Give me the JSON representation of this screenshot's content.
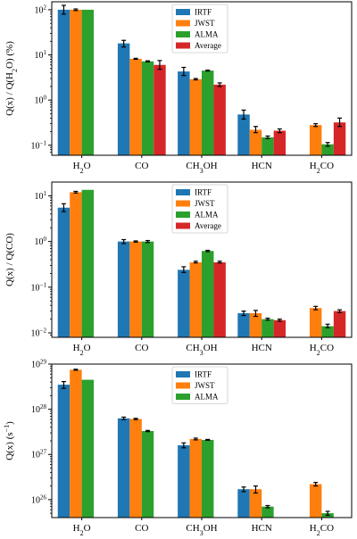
{
  "series_colors": {
    "IRTF": "#1f77b4",
    "JWST": "#ff7f0e",
    "ALMA": "#2ca02c",
    "Average": "#d62728"
  },
  "chart_data": [
    {
      "type": "bar",
      "yscale": "log",
      "ylim": [
        0.06,
        150
      ],
      "yticks": [
        0.1,
        1,
        10,
        100
      ],
      "ytick_labels": [
        {
          "base": "10",
          "exp": "−1"
        },
        {
          "base": "10",
          "exp": "0"
        },
        {
          "base": "10",
          "exp": "1"
        },
        {
          "base": "10",
          "exp": "2"
        }
      ],
      "ylabel_parts": [
        {
          "t": "Q(x) / Q(H"
        },
        {
          "t": "2",
          "sub": true
        },
        {
          "t": "O) (%)"
        }
      ],
      "categories": [
        [
          {
            "t": "H"
          },
          {
            "t": "2",
            "sub": true
          },
          {
            "t": "O"
          }
        ],
        [
          {
            "t": "CO"
          }
        ],
        [
          {
            "t": "CH"
          },
          {
            "t": "3",
            "sub": true
          },
          {
            "t": "OH"
          }
        ],
        [
          {
            "t": "HCN"
          }
        ],
        [
          {
            "t": "H"
          },
          {
            "t": "2",
            "sub": true
          },
          {
            "t": "CO"
          }
        ]
      ],
      "legend": [
        "IRTF",
        "JWST",
        "ALMA",
        "Average"
      ],
      "legend_position": "top-center",
      "series": [
        {
          "name": "IRTF",
          "values": [
            100,
            18,
            4.3,
            0.48,
            null
          ],
          "err": [
            [
              80,
              125
            ],
            [
              15,
              21
            ],
            [
              3.5,
              5.3
            ],
            [
              0.38,
              0.6
            ],
            null
          ]
        },
        {
          "name": "JWST",
          "values": [
            100,
            8.2,
            2.9,
            0.22,
            0.28
          ],
          "err": [
            [
              96,
              104
            ],
            [
              8.0,
              8.4
            ],
            [
              2.8,
              3.0
            ],
            [
              0.19,
              0.26
            ],
            [
              0.26,
              0.3
            ]
          ]
        },
        {
          "name": "ALMA",
          "values": [
            100,
            7.2,
            4.5,
            0.15,
            0.105
          ],
          "err": [
            null,
            [
              7.0,
              7.4
            ],
            [
              4.4,
              4.6
            ],
            [
              0.14,
              0.16
            ],
            [
              0.095,
              0.115
            ]
          ]
        },
        {
          "name": "Average",
          "values": [
            null,
            6.0,
            2.2,
            0.21,
            0.32
          ],
          "err": [
            null,
            [
              4.8,
              7.5
            ],
            [
              2.0,
              2.4
            ],
            [
              0.19,
              0.23
            ],
            [
              0.26,
              0.4
            ]
          ]
        }
      ]
    },
    {
      "type": "bar",
      "yscale": "log",
      "ylim": [
        0.008,
        20
      ],
      "yticks": [
        0.01,
        0.1,
        1,
        10
      ],
      "ytick_labels": [
        {
          "base": "10",
          "exp": "−2"
        },
        {
          "base": "10",
          "exp": "−1"
        },
        {
          "base": "10",
          "exp": "0"
        },
        {
          "base": "10",
          "exp": "1"
        }
      ],
      "ylabel_parts": [
        {
          "t": "Q(x) / Q(CO)"
        }
      ],
      "categories": [
        [
          {
            "t": "H"
          },
          {
            "t": "2",
            "sub": true
          },
          {
            "t": "O"
          }
        ],
        [
          {
            "t": "CO"
          }
        ],
        [
          {
            "t": "CH"
          },
          {
            "t": "3",
            "sub": true
          },
          {
            "t": "OH"
          }
        ],
        [
          {
            "t": "HCN"
          }
        ],
        [
          {
            "t": "H"
          },
          {
            "t": "2",
            "sub": true
          },
          {
            "t": "CO"
          }
        ]
      ],
      "legend": [
        "IRTF",
        "JWST",
        "ALMA",
        "Average"
      ],
      "legend_position": "top-center",
      "series": [
        {
          "name": "IRTF",
          "values": [
            5.5,
            1.0,
            0.24,
            0.027,
            null
          ],
          "err": [
            [
              4.5,
              6.7
            ],
            [
              0.9,
              1.1
            ],
            [
              0.21,
              0.28
            ],
            [
              0.024,
              0.03
            ],
            null
          ]
        },
        {
          "name": "JWST",
          "values": [
            12,
            1.0,
            0.35,
            0.027,
            0.035
          ],
          "err": [
            [
              11.5,
              12.5
            ],
            [
              0.97,
              1.03
            ],
            [
              0.34,
              0.37
            ],
            [
              0.023,
              0.031
            ],
            [
              0.032,
              0.038
            ]
          ]
        },
        {
          "name": "ALMA",
          "values": [
            13.5,
            1.0,
            0.62,
            0.02,
            0.014
          ],
          "err": [
            null,
            [
              0.95,
              1.05
            ],
            [
              0.6,
              0.64
            ],
            [
              0.019,
              0.021
            ],
            [
              0.013,
              0.0155
            ]
          ]
        },
        {
          "name": "Average",
          "values": [
            null,
            null,
            0.35,
            0.019,
            0.03
          ],
          "err": [
            null,
            null,
            [
              0.34,
              0.37
            ],
            [
              0.018,
              0.02
            ],
            [
              0.028,
              0.032
            ]
          ]
        }
      ]
    },
    {
      "type": "bar",
      "yscale": "log",
      "ylim": [
        4e+25,
        1e+29
      ],
      "yticks": [
        1e+26,
        1e+27,
        1e+28,
        1e+29
      ],
      "ytick_labels": [
        {
          "base": "10",
          "exp": "26"
        },
        {
          "base": "10",
          "exp": "27"
        },
        {
          "base": "10",
          "exp": "28"
        },
        {
          "base": "10",
          "exp": "29"
        }
      ],
      "ylabel_parts": [
        {
          "t": "Q(x) (s"
        },
        {
          "t": "−1",
          "sup": true
        },
        {
          "t": ")"
        }
      ],
      "categories": [
        [
          {
            "t": "H"
          },
          {
            "t": "2",
            "sub": true
          },
          {
            "t": "O"
          }
        ],
        [
          {
            "t": "CO"
          }
        ],
        [
          {
            "t": "CH"
          },
          {
            "t": "3",
            "sub": true
          },
          {
            "t": "OH"
          }
        ],
        [
          {
            "t": "HCN"
          }
        ],
        [
          {
            "t": "H"
          },
          {
            "t": "2",
            "sub": true
          },
          {
            "t": "CO"
          }
        ]
      ],
      "legend": [
        "IRTF",
        "JWST",
        "ALMA"
      ],
      "legend_position": "top-center",
      "series": [
        {
          "name": "IRTF",
          "values": [
            3.5e+28,
            6.3e+27,
            1.6e+27,
            1.7e+26,
            null
          ],
          "err": [
            [
              2.9e+28,
              4.1e+28
            ],
            [
              5.9e+27,
              6.7e+27
            ],
            [
              1.4e+27,
              1.8e+27
            ],
            [
              1.5e+26,
              1.9e+26
            ],
            null
          ]
        },
        {
          "name": "JWST",
          "values": [
            7.5e+28,
            6.1e+27,
            2.2e+27,
            1.7e+26,
            2.2e+26
          ],
          "err": [
            [
              7.3e+28,
              7.7e+28
            ],
            [
              5.9e+27,
              6.3e+27
            ],
            [
              2.1e+27,
              2.3e+27
            ],
            [
              1.4e+26,
              2e+26
            ],
            [
              2e+26,
              2.4e+26
            ]
          ]
        },
        {
          "name": "ALMA",
          "values": [
            4.5e+28,
            3.3e+27,
            2.1e+27,
            7e+25,
            5e+25
          ],
          "err": [
            null,
            [
              3.2e+27,
              3.4e+27
            ],
            [
              2.05e+27,
              2.15e+27
            ],
            [
              6.6e+25,
              7.4e+25
            ],
            [
              4.5e+25,
              5.5e+25
            ]
          ]
        }
      ]
    }
  ]
}
